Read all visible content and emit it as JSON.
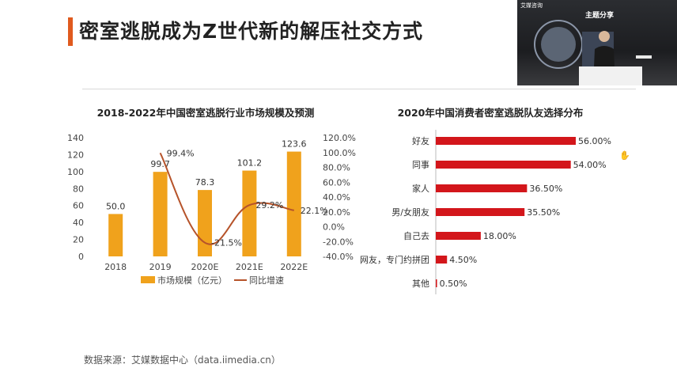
{
  "slide": {
    "title": "密室逃脱成为Z世代新的解压社交方式",
    "source": "数据来源：艾媒数据中心（data.iimedia.cn）"
  },
  "video": {
    "brand": "艾媒咨询",
    "caption": "主题分享"
  },
  "colors": {
    "accent": "#e05a1e",
    "bar_orange": "#f0a21c",
    "line_brown": "#b6532a",
    "bar_red": "#d3161b"
  },
  "chart_data": [
    {
      "type": "bar",
      "title": "2018-2022年中国密室逃脱行业市场规模及预测",
      "categories": [
        "2018",
        "2019",
        "2020E",
        "2021E",
        "2022E"
      ],
      "series": [
        {
          "name": "市场规模（亿元）",
          "type": "bar",
          "values": [
            50.0,
            99.7,
            78.3,
            101.2,
            123.6
          ],
          "labels": [
            "50.0",
            "99.7",
            "78.3",
            "101.2",
            "123.6"
          ]
        },
        {
          "name": "同比增速",
          "type": "line",
          "values": [
            null,
            99.4,
            -21.5,
            29.2,
            22.1
          ],
          "labels": [
            "",
            "99.4%",
            "-21.5%",
            "29.2%",
            "22.1%"
          ]
        }
      ],
      "ylim": [
        0,
        140
      ],
      "yticks": [
        "0",
        "20",
        "40",
        "60",
        "80",
        "100",
        "120",
        "140"
      ],
      "y2lim": [
        -40,
        120
      ],
      "y2ticks": [
        "-40.0%",
        "-20.0%",
        "0.0%",
        "20.0%",
        "40.0%",
        "60.0%",
        "80.0%",
        "100.0%",
        "120.0%"
      ],
      "legend": "bottom"
    },
    {
      "type": "bar",
      "title": "2020年中国消费者密室逃脱队友选择分布",
      "categories": [
        "好友",
        "同事",
        "家人",
        "男/女朋友",
        "自己去",
        "网友，专门约拼团",
        "其他"
      ],
      "values": [
        56.0,
        54.0,
        36.5,
        35.5,
        18.0,
        4.5,
        0.5
      ],
      "labels": [
        "56.00%",
        "54.00%",
        "36.50%",
        "35.50%",
        "18.00%",
        "4.50%",
        "0.50%"
      ],
      "xlim": [
        0,
        60
      ],
      "orientation": "horizontal"
    }
  ]
}
